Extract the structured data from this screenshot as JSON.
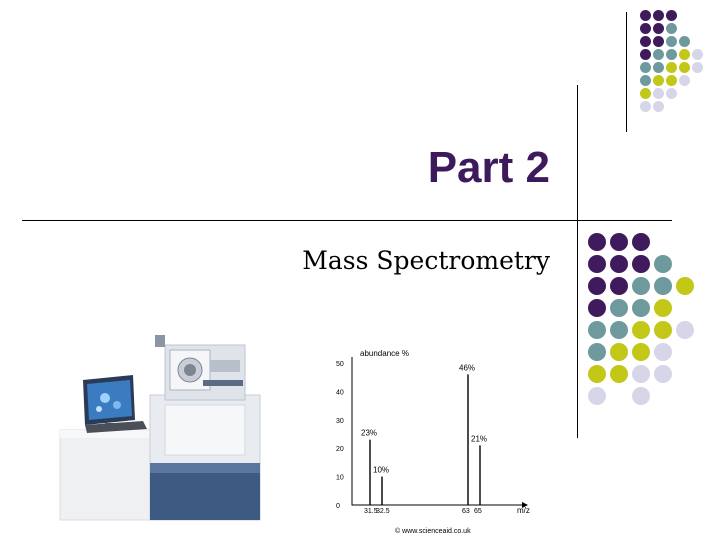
{
  "slide": {
    "title": "Part 2",
    "subtitle": "Mass Spectrometry"
  },
  "colors": {
    "purple": "#3f1a5c",
    "teal": "#6e9a9e",
    "yellow": "#c2c718",
    "lavender": "#d6d6e8",
    "title": "#3d1a5c"
  },
  "decoration": {
    "dots_top": [
      [
        "purple",
        "purple",
        "purple",
        "",
        ""
      ],
      [
        "purple",
        "purple",
        "teal",
        "",
        ""
      ],
      [
        "purple",
        "purple",
        "teal",
        "teal",
        ""
      ],
      [
        "purple",
        "teal",
        "teal",
        "yellow",
        "lavender"
      ],
      [
        "teal",
        "teal",
        "yellow",
        "yellow",
        "lavender"
      ],
      [
        "teal",
        "yellow",
        "yellow",
        "lavender",
        ""
      ],
      [
        "yellow",
        "lavender",
        "lavender",
        "",
        ""
      ],
      [
        "lavender",
        "lavender",
        "",
        "",
        ""
      ]
    ],
    "dots_mid": [
      [
        "purple",
        "purple",
        "purple",
        "",
        ""
      ],
      [
        "purple",
        "purple",
        "purple",
        "teal",
        ""
      ],
      [
        "purple",
        "purple",
        "teal",
        "teal",
        "yellow"
      ],
      [
        "purple",
        "teal",
        "teal",
        "yellow",
        ""
      ],
      [
        "teal",
        "teal",
        "yellow",
        "yellow",
        "lavender"
      ],
      [
        "teal",
        "yellow",
        "yellow",
        "lavender",
        ""
      ],
      [
        "yellow",
        "yellow",
        "lavender",
        "lavender",
        ""
      ],
      [
        "lavender",
        "",
        "lavender",
        "",
        ""
      ]
    ]
  },
  "spectrum_image": {
    "y_axis_label": "abundance %",
    "x_axis_label": "m/z",
    "y_ticks": [
      "50",
      "40",
      "30",
      "20",
      "10",
      "0"
    ],
    "x_ticks": [
      "31.5",
      "32.5",
      "63",
      "65"
    ],
    "peaks": [
      {
        "label": "23%",
        "x": 31.5,
        "value": 23
      },
      {
        "label": "10%",
        "x": 32.5,
        "value": 10
      },
      {
        "label": "46%",
        "x": 63,
        "value": 46
      },
      {
        "label": "21%",
        "x": 65,
        "value": 21
      }
    ],
    "credit": "© www.scienceaid.co.uk"
  }
}
